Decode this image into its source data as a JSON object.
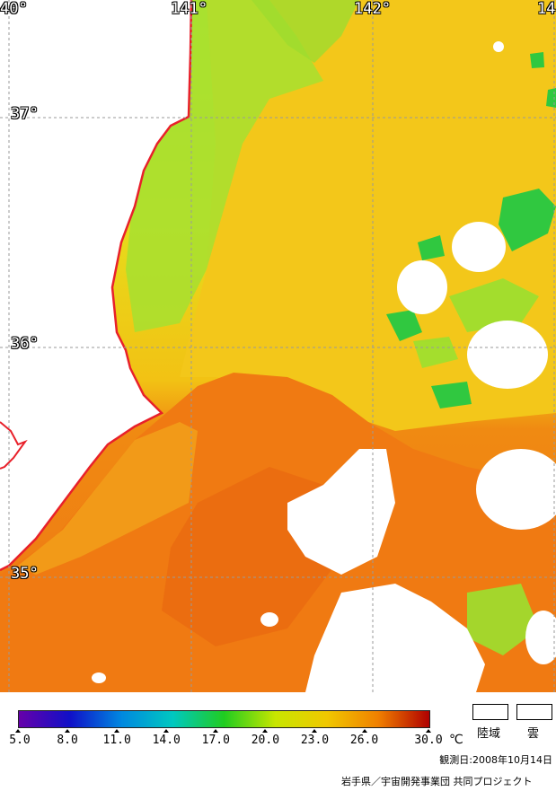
{
  "map": {
    "longitude_labels": [
      "40°",
      "141°",
      "142°",
      "14"
    ],
    "latitude_labels": [
      "37°",
      "36°",
      "35°"
    ],
    "colors": {
      "land": "#ffffff",
      "cloud": "#ffffff",
      "coastline": "#e8202a",
      "grid": "#9a9a9a",
      "sst_cool": "#8fe030",
      "sst_mid": "#f2cc10",
      "sst_warm": "#f07a10",
      "sst_green": "#20c040"
    }
  },
  "colorbar": {
    "tick_values": [
      "5.0",
      "8.0",
      "11.0",
      "14.0",
      "17.0",
      "20.0",
      "23.0",
      "26.0",
      "30.0"
    ],
    "unit": "℃",
    "range": [
      5.0,
      30.0
    ],
    "gradient": [
      "#6600aa",
      "#1010c8",
      "#0088e0",
      "#00c8c0",
      "#20cc20",
      "#c8e600",
      "#f0c800",
      "#f08000",
      "#b00000"
    ]
  },
  "legend": {
    "land_label": "陸域",
    "cloud_label": "雲"
  },
  "observation_date": "観測日:2008年10月14日",
  "credit": "岩手県／宇宙開発事業団 共同プロジェクト"
}
